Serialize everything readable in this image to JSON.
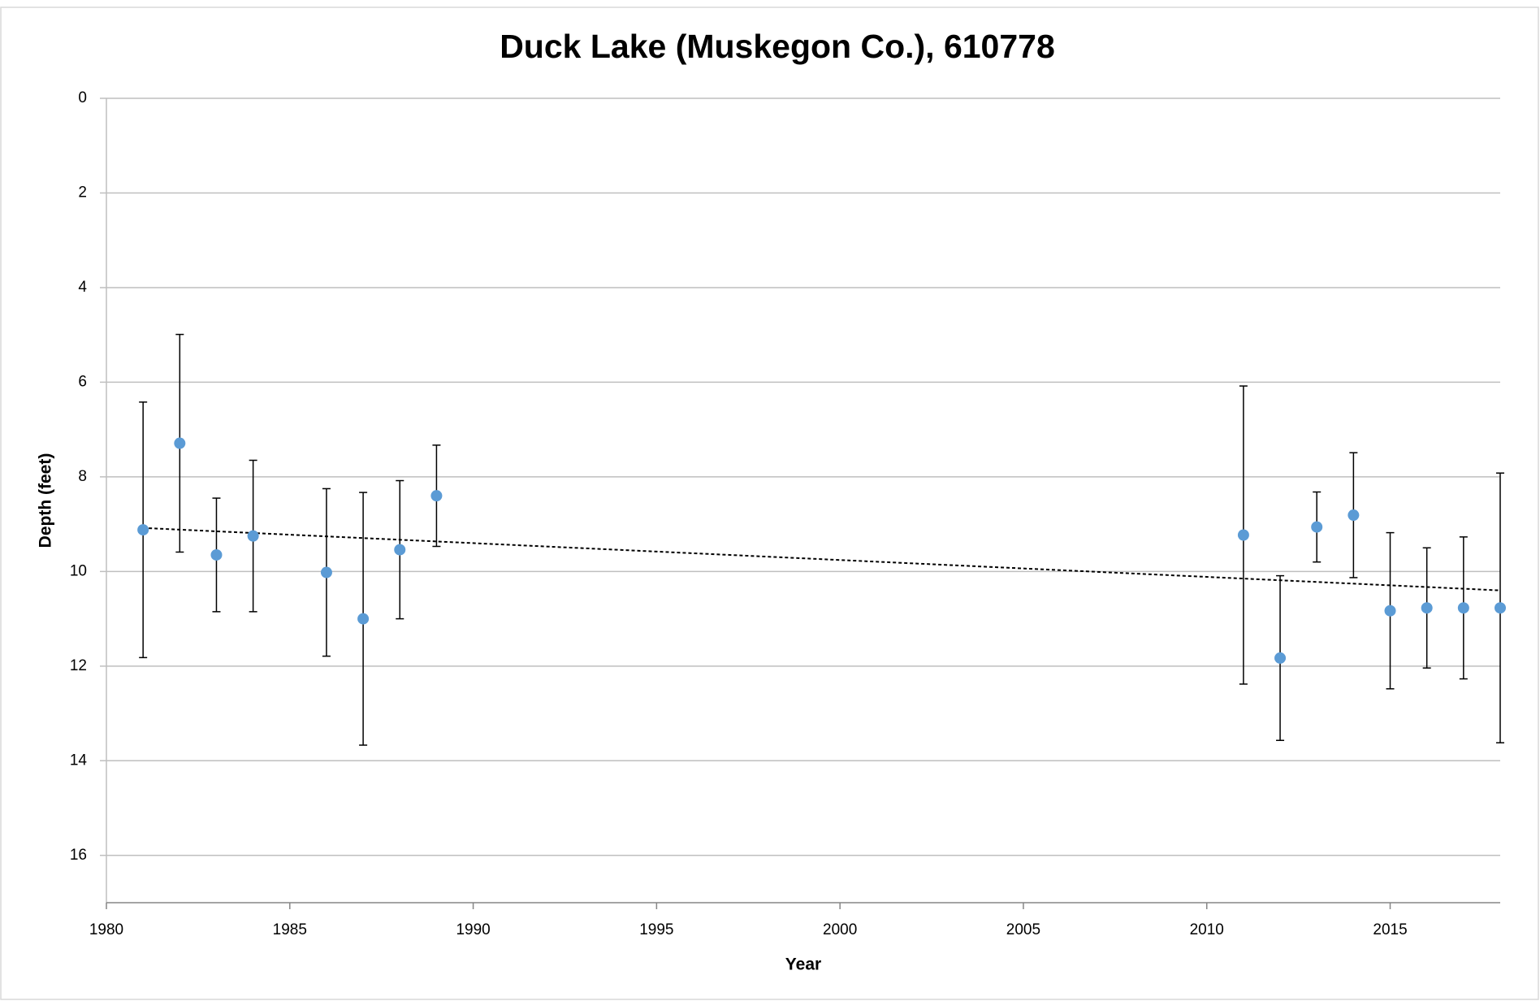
{
  "chart_data": {
    "type": "scatter",
    "title": "Duck Lake (Muskegon Co.), 610778",
    "x_label": "Year",
    "y_label": "Depth (feet)",
    "x": [
      1981,
      1982,
      1983,
      1984,
      1986,
      1987,
      1988,
      1989,
      2011,
      2012,
      2013,
      2014,
      2015,
      2016,
      2017,
      2018
    ],
    "values": [
      9.12,
      7.29,
      9.65,
      9.25,
      10.02,
      11.0,
      9.54,
      8.4,
      9.23,
      11.83,
      9.06,
      8.81,
      10.83,
      10.77,
      10.77,
      10.77
    ],
    "errors": [
      2.7,
      2.3,
      1.2,
      1.6,
      1.77,
      2.67,
      1.46,
      1.07,
      3.15,
      1.74,
      0.74,
      1.32,
      1.65,
      1.27,
      1.5,
      2.85
    ],
    "color": "#5b9bd5",
    "trendline": {
      "x": [
        1981,
        2018
      ],
      "values": [
        9.08,
        10.4
      ]
    },
    "xlim": [
      1980,
      2018
    ],
    "xticks": [
      1980,
      1985,
      1990,
      1995,
      2000,
      2005,
      2010,
      2015
    ],
    "ylim": [
      0,
      17
    ],
    "yticks": [
      0,
      2,
      4,
      6,
      8,
      10,
      12,
      14,
      16
    ],
    "y_reversed": true,
    "grid": true
  }
}
